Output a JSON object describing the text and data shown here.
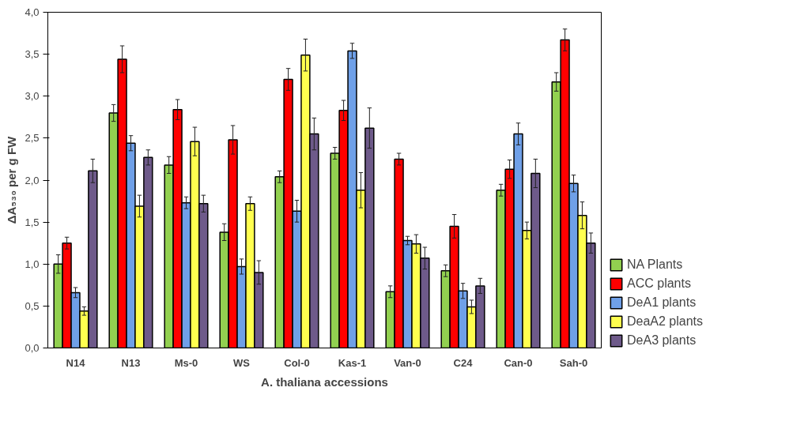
{
  "chart_data": {
    "type": "bar",
    "ylabel": "ΔA₅₃₀ per g FW",
    "xlabel": "A. thaliana accessions",
    "categories": [
      "N14",
      "N13",
      "Ms-0",
      "WS",
      "Col-0",
      "Kas-1",
      "Van-0",
      "C24",
      "Can-0",
      "Sah-0"
    ],
    "series": [
      {
        "name": "NA Plants",
        "color": "#92d050",
        "values": [
          1.0,
          2.8,
          2.18,
          1.38,
          2.04,
          2.32,
          0.67,
          0.92,
          1.88,
          3.17
        ],
        "errors": [
          0.11,
          0.1,
          0.1,
          0.1,
          0.07,
          0.07,
          0.07,
          0.07,
          0.07,
          0.11
        ]
      },
      {
        "name": "ACC plants",
        "color": "#ff0000",
        "values": [
          1.25,
          3.44,
          2.84,
          2.48,
          3.2,
          2.83,
          2.25,
          1.45,
          2.13,
          3.67
        ],
        "errors": [
          0.07,
          0.16,
          0.12,
          0.17,
          0.13,
          0.12,
          0.07,
          0.14,
          0.11,
          0.13
        ]
      },
      {
        "name": "DeA1 plants",
        "color": "#6fa0e8",
        "values": [
          0.66,
          2.44,
          1.73,
          0.97,
          1.63,
          3.54,
          1.28,
          0.68,
          2.55,
          1.96
        ],
        "errors": [
          0.06,
          0.09,
          0.07,
          0.09,
          0.13,
          0.09,
          0.05,
          0.09,
          0.13,
          0.1
        ]
      },
      {
        "name": "DeaA2 plants",
        "color": "#ffff4f",
        "values": [
          0.44,
          1.69,
          2.46,
          1.72,
          3.49,
          1.88,
          1.24,
          0.49,
          1.4,
          1.58
        ],
        "errors": [
          0.05,
          0.13,
          0.17,
          0.08,
          0.19,
          0.21,
          0.11,
          0.08,
          0.1,
          0.16
        ]
      },
      {
        "name": "DeA3 plants",
        "color": "#6e5a8a",
        "values": [
          2.11,
          2.27,
          1.72,
          0.9,
          2.55,
          2.62,
          1.07,
          0.74,
          2.08,
          1.25
        ],
        "errors": [
          0.14,
          0.09,
          0.1,
          0.14,
          0.19,
          0.24,
          0.13,
          0.09,
          0.17,
          0.12
        ]
      }
    ],
    "ylim": [
      0,
      4
    ],
    "yticks": [
      {
        "value": 0,
        "label": "0,0"
      },
      {
        "value": 0.5,
        "label": "0,5"
      },
      {
        "value": 1,
        "label": "1,0"
      },
      {
        "value": 1.5,
        "label": "1,5"
      },
      {
        "value": 2,
        "label": "2,0"
      },
      {
        "value": 2.5,
        "label": "2,5"
      },
      {
        "value": 3,
        "label": "3,0"
      },
      {
        "value": 3.5,
        "label": "3,5"
      },
      {
        "value": 4,
        "label": "4,0"
      }
    ],
    "grid": false,
    "legend": "bottom right"
  }
}
